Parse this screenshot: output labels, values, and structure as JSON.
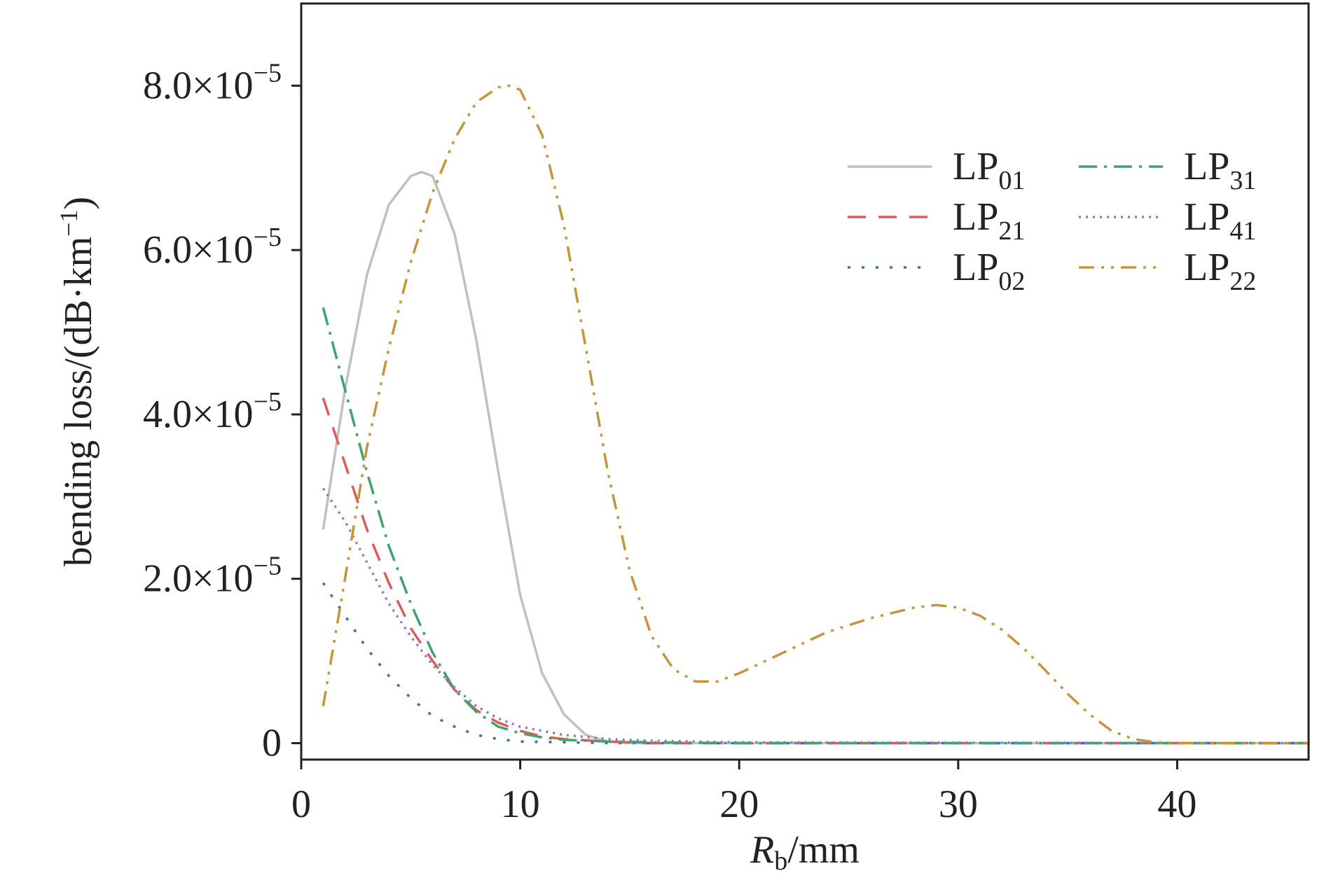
{
  "chart_data": {
    "type": "line",
    "xlabel": "R",
    "xlabel_sub": "b",
    "xlabel_unit": "/mm",
    "ylabel": "bending loss/(dB·km",
    "ylabel_sup": "−1",
    "ylabel_close": ")",
    "xlim": [
      0,
      46
    ],
    "ylim": [
      -2e-06,
      9e-05
    ],
    "grid": false,
    "legend": "top-right",
    "xticks": [
      {
        "value": 0,
        "label": "0"
      },
      {
        "value": 10,
        "label": "10"
      },
      {
        "value": 20,
        "label": "20"
      },
      {
        "value": 30,
        "label": "30"
      },
      {
        "value": 40,
        "label": "40"
      }
    ],
    "yticks": [
      {
        "value": 0,
        "mantissa": "0",
        "exp": ""
      },
      {
        "value": 2e-05,
        "mantissa": "2.0×10",
        "exp": "−5"
      },
      {
        "value": 4e-05,
        "mantissa": "4.0×10",
        "exp": "−5"
      },
      {
        "value": 6e-05,
        "mantissa": "6.0×10",
        "exp": "−5"
      },
      {
        "value": 8e-05,
        "mantissa": "8.0×10",
        "exp": "−5"
      }
    ],
    "series": [
      {
        "name": "LP",
        "name_sub": "01",
        "color": "#c0c0c0",
        "dash": "solid",
        "x": [
          1,
          2,
          3,
          4,
          5,
          5.5,
          6,
          7,
          8,
          9,
          10,
          11,
          12,
          13,
          14,
          15,
          17,
          20,
          46
        ],
        "y": [
          2.6e-05,
          4.3e-05,
          5.7e-05,
          6.55e-05,
          6.9e-05,
          6.95e-05,
          6.9e-05,
          6.2e-05,
          4.9e-05,
          3.3e-05,
          1.8e-05,
          8.5e-06,
          3.5e-06,
          1e-06,
          2e-07,
          0,
          0,
          0,
          0
        ]
      },
      {
        "name": "LP",
        "name_sub": "21",
        "color": "#e05a5a",
        "dash": "longdash",
        "x": [
          1,
          2,
          3,
          4,
          5,
          6,
          7,
          8,
          9,
          10,
          11,
          12,
          14,
          16,
          20,
          46
        ],
        "y": [
          4.2e-05,
          3.4e-05,
          2.6e-05,
          1.95e-05,
          1.4e-05,
          1e-05,
          6.5e-06,
          4e-06,
          2.5e-06,
          1.5e-06,
          8e-07,
          5e-07,
          2e-07,
          0,
          0,
          0
        ]
      },
      {
        "name": "LP",
        "name_sub": "02",
        "color": "#3a6fb0",
        "dash": "dot",
        "x": [
          1,
          2,
          3,
          4,
          5,
          6,
          7,
          8,
          9,
          10,
          12,
          14,
          20,
          46
        ],
        "y": [
          1.95e-05,
          1.55e-05,
          1.15e-05,
          8.2e-06,
          5.5e-06,
          3.3e-06,
          2e-06,
          1e-06,
          5e-07,
          2e-07,
          1e-07,
          0,
          0,
          0
        ]
      },
      {
        "name": "LP",
        "name_sub": "31",
        "color": "#3fa36a",
        "dash": "dashdot",
        "x": [
          1,
          2,
          3,
          4,
          5,
          6,
          7,
          8,
          9,
          10,
          11,
          12,
          14,
          16,
          20,
          46
        ],
        "y": [
          5.3e-05,
          4.3e-05,
          3.3e-05,
          2.4e-05,
          1.7e-05,
          1.1e-05,
          6.5e-06,
          3.8e-06,
          2e-06,
          1.2e-06,
          7e-07,
          4e-07,
          2e-07,
          1e-07,
          0,
          0
        ]
      },
      {
        "name": "LP",
        "name_sub": "41",
        "color": "#8a7cc4",
        "dash": "densedot",
        "x": [
          1,
          2,
          3,
          4,
          5,
          6,
          7,
          8,
          9,
          10,
          12,
          14,
          16,
          18,
          20,
          46
        ],
        "y": [
          3.1e-05,
          2.7e-05,
          2.2e-05,
          1.7e-05,
          1.3e-05,
          9.5e-06,
          6.8e-06,
          4.5e-06,
          3e-06,
          2e-06,
          1e-06,
          5e-07,
          3e-07,
          2e-07,
          1e-07,
          0
        ]
      },
      {
        "name": "LP",
        "name_sub": "22",
        "color": "#c4963a",
        "dash": "dashdotdot",
        "x": [
          1,
          2,
          3,
          4,
          5,
          6,
          7,
          8,
          9,
          9.5,
          10,
          11,
          12,
          13,
          14,
          15,
          16,
          17,
          18,
          19,
          20,
          22,
          24,
          26,
          28,
          29,
          30,
          31,
          32,
          33,
          34,
          35,
          36,
          37,
          38,
          39,
          40,
          46
        ],
        "y": [
          4.5e-06,
          2e-05,
          3.6e-05,
          4.8e-05,
          5.85e-05,
          6.7e-05,
          7.35e-05,
          7.8e-05,
          7.98e-05,
          8e-05,
          7.95e-05,
          7.4e-05,
          6.3e-05,
          4.8e-05,
          3.3e-05,
          2.1e-05,
          1.3e-05,
          9e-06,
          7.5e-06,
          7.5e-06,
          8.5e-06,
          1.1e-05,
          1.35e-05,
          1.52e-05,
          1.65e-05,
          1.68e-05,
          1.65e-05,
          1.55e-05,
          1.38e-05,
          1.15e-05,
          8.8e-06,
          6e-06,
          3.5e-06,
          1.5e-06,
          5e-07,
          1e-07,
          0,
          0
        ]
      }
    ]
  }
}
